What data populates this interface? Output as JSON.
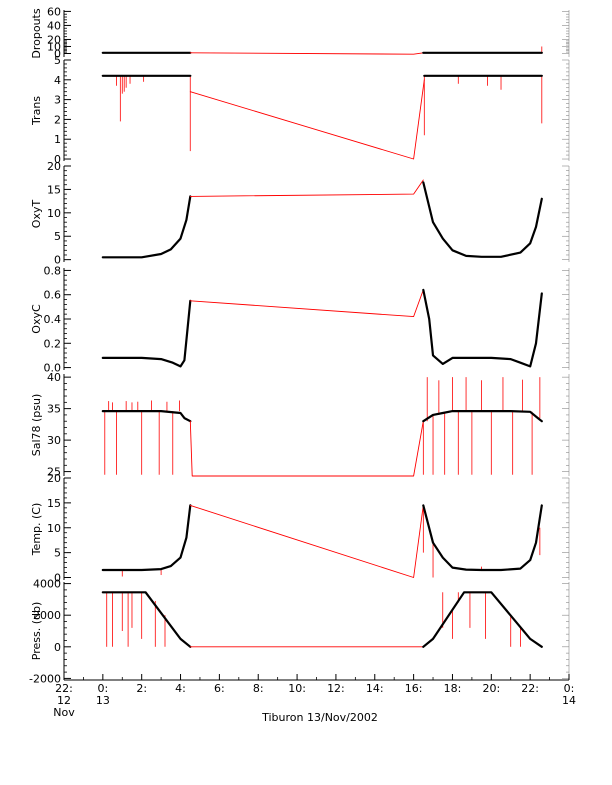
{
  "chart_data": {
    "type": "line",
    "title": "",
    "xlabel": "Tiburon 13/Nov/2002",
    "x_unit": "hours from 00:00 13 Nov 2002",
    "xlim": [
      -2,
      24
    ],
    "x_ticks": [
      {
        "value": -2,
        "lines": [
          "22:",
          "12",
          "Nov"
        ]
      },
      {
        "value": 0,
        "lines": [
          "0:",
          "13"
        ]
      },
      {
        "value": 2,
        "lines": [
          "2:"
        ]
      },
      {
        "value": 4,
        "lines": [
          "4:"
        ]
      },
      {
        "value": 6,
        "lines": [
          "6:"
        ]
      },
      {
        "value": 8,
        "lines": [
          "8:"
        ]
      },
      {
        "value": 10,
        "lines": [
          "10:"
        ]
      },
      {
        "value": 12,
        "lines": [
          "12:"
        ]
      },
      {
        "value": 14,
        "lines": [
          "14:"
        ]
      },
      {
        "value": 16,
        "lines": [
          "16:"
        ]
      },
      {
        "value": 18,
        "lines": [
          "18:"
        ]
      },
      {
        "value": 20,
        "lines": [
          "20:"
        ]
      },
      {
        "value": 22,
        "lines": [
          "22:"
        ]
      },
      {
        "value": 24,
        "lines": [
          "0:",
          "14"
        ]
      }
    ],
    "colors": {
      "data": "#000000",
      "link": "#ff0000"
    },
    "panels": [
      {
        "ylabel": "Dropouts",
        "ylim": [
          -5,
          62
        ],
        "yticks": [
          "0",
          "10",
          "20",
          "40",
          "60"
        ],
        "ytick_values": [
          0,
          10,
          20,
          40,
          60
        ],
        "series": [
          {
            "style": "data",
            "x": [
              0,
              4.5
            ],
            "y": [
              1,
              1
            ]
          },
          {
            "style": "link",
            "x": [
              4.5,
              16,
              16.5
            ],
            "y": [
              1,
              -1,
              1
            ]
          },
          {
            "style": "data",
            "x": [
              16.5,
              22.6
            ],
            "y": [
              1,
              1
            ]
          }
        ],
        "spikes": [
          {
            "x": 22.6,
            "y0": 1,
            "y1": 10
          }
        ]
      },
      {
        "ylabel": "Trans",
        "ylim": [
          -0.1,
          5
        ],
        "yticks": [
          "0",
          "1",
          "2",
          "3",
          "4",
          "5"
        ],
        "ytick_values": [
          0,
          1,
          2,
          3,
          4,
          5
        ],
        "series": [
          {
            "style": "data",
            "x": [
              0,
              4.5
            ],
            "y": [
              4.2,
              4.2
            ]
          },
          {
            "style": "link",
            "x": [
              4.5,
              16,
              16.55
            ],
            "y": [
              3.4,
              0,
              4.0
            ]
          },
          {
            "style": "data",
            "x": [
              16.55,
              22.6
            ],
            "y": [
              4.2,
              4.2
            ]
          }
        ],
        "spikes": [
          {
            "x": 0.7,
            "y0": 4.2,
            "y1": 3.7
          },
          {
            "x": 0.9,
            "y0": 4.2,
            "y1": 1.9
          },
          {
            "x": 1.0,
            "y0": 4.2,
            "y1": 3.3
          },
          {
            "x": 1.1,
            "y0": 4.2,
            "y1": 3.4
          },
          {
            "x": 1.2,
            "y0": 4.2,
            "y1": 3.6
          },
          {
            "x": 1.4,
            "y0": 4.2,
            "y1": 3.8
          },
          {
            "x": 2.1,
            "y0": 4.2,
            "y1": 3.9
          },
          {
            "x": 4.5,
            "y0": 4.2,
            "y1": 0.4
          },
          {
            "x": 16.55,
            "y0": 4.2,
            "y1": 1.2
          },
          {
            "x": 18.3,
            "y0": 4.2,
            "y1": 3.8
          },
          {
            "x": 19.8,
            "y0": 4.2,
            "y1": 3.7
          },
          {
            "x": 20.5,
            "y0": 4.2,
            "y1": 3.5
          },
          {
            "x": 22.6,
            "y0": 4.2,
            "y1": 1.8
          }
        ]
      },
      {
        "ylabel": "OxyT",
        "ylim": [
          -0.5,
          20
        ],
        "yticks": [
          "0",
          "5",
          "10",
          "15",
          "20"
        ],
        "ytick_values": [
          0,
          5,
          10,
          15,
          20
        ],
        "series": [
          {
            "style": "data",
            "x": [
              0,
              2,
              3,
              3.5,
              4,
              4.3,
              4.5
            ],
            "y": [
              0.5,
              0.5,
              1.2,
              2.2,
              4.5,
              8.5,
              13.5
            ]
          },
          {
            "style": "link",
            "x": [
              4.5,
              16,
              16.5
            ],
            "y": [
              13.5,
              14,
              17
            ]
          },
          {
            "style": "data",
            "x": [
              16.5,
              17,
              17.5,
              18,
              18.7,
              19.5,
              20.5,
              21.5,
              22,
              22.3,
              22.6
            ],
            "y": [
              16.5,
              8,
              4.5,
              2,
              0.8,
              0.6,
              0.6,
              1.5,
              3.5,
              7,
              13
            ]
          }
        ],
        "spikes": []
      },
      {
        "ylabel": "OxyC",
        "ylim": [
          -0.02,
          0.82
        ],
        "yticks": [
          "0.0",
          "0.2",
          "0.4",
          "0.6",
          "0.8"
        ],
        "ytick_values": [
          0,
          0.2,
          0.4,
          0.6,
          0.8
        ],
        "series": [
          {
            "style": "data",
            "x": [
              0,
              2,
              3,
              3.6,
              4,
              4.2,
              4.35,
              4.5
            ],
            "y": [
              0.08,
              0.08,
              0.07,
              0.04,
              0.01,
              0.06,
              0.3,
              0.55
            ]
          },
          {
            "style": "link",
            "x": [
              4.5,
              16,
              16.5
            ],
            "y": [
              0.55,
              0.42,
              0.64
            ]
          },
          {
            "style": "data",
            "x": [
              16.5,
              16.8,
              17,
              17.5,
              18,
              19,
              20,
              21,
              21.5,
              22,
              22.3,
              22.6
            ],
            "y": [
              0.64,
              0.4,
              0.1,
              0.03,
              0.08,
              0.08,
              0.08,
              0.07,
              0.04,
              0.01,
              0.2,
              0.61
            ]
          }
        ],
        "spikes": []
      },
      {
        "ylabel": "Sal78 (psu)",
        "ylim": [
          24.3,
          40.5
        ],
        "yticks": [
          "25",
          "30",
          "35",
          "40"
        ],
        "ytick_values": [
          25,
          30,
          35,
          40
        ],
        "series": [
          {
            "style": "data",
            "x": [
              0,
              3,
              4,
              4.2,
              4.5
            ],
            "y": [
              34.6,
              34.6,
              34.3,
              33.5,
              33
            ]
          },
          {
            "style": "link",
            "x": [
              4.5,
              4.6,
              16,
              16.5
            ],
            "y": [
              33,
              24.3,
              24.3,
              33
            ]
          },
          {
            "style": "data",
            "x": [
              16.5,
              17,
              17.5,
              18,
              19,
              20,
              21,
              22,
              22.4,
              22.6
            ],
            "y": [
              33,
              34,
              34.3,
              34.6,
              34.6,
              34.6,
              34.6,
              34.5,
              33.5,
              33
            ]
          }
        ],
        "spikes": [
          {
            "x": 0.1,
            "y0": 34.6,
            "y1": 24.5
          },
          {
            "x": 0.3,
            "y0": 34.6,
            "y1": 36.2
          },
          {
            "x": 0.5,
            "y0": 34.6,
            "y1": 36.0
          },
          {
            "x": 0.7,
            "y0": 34.6,
            "y1": 24.5
          },
          {
            "x": 1.2,
            "y0": 34.6,
            "y1": 36.2
          },
          {
            "x": 1.5,
            "y0": 34.6,
            "y1": 36.0
          },
          {
            "x": 1.8,
            "y0": 34.6,
            "y1": 36.1
          },
          {
            "x": 2.0,
            "y0": 34.6,
            "y1": 24.5
          },
          {
            "x": 2.5,
            "y0": 34.6,
            "y1": 36.3
          },
          {
            "x": 2.9,
            "y0": 34.6,
            "y1": 24.5
          },
          {
            "x": 3.3,
            "y0": 34.6,
            "y1": 36.1
          },
          {
            "x": 3.6,
            "y0": 34.6,
            "y1": 24.5
          },
          {
            "x": 3.95,
            "y0": 34.6,
            "y1": 36.3
          },
          {
            "x": 16.5,
            "y0": 33,
            "y1": 24.5
          },
          {
            "x": 16.7,
            "y0": 33,
            "y1": 40
          },
          {
            "x": 17.0,
            "y0": 34,
            "y1": 24.5
          },
          {
            "x": 17.3,
            "y0": 34,
            "y1": 39.5
          },
          {
            "x": 17.6,
            "y0": 34.3,
            "y1": 24.5
          },
          {
            "x": 18.0,
            "y0": 34.6,
            "y1": 40
          },
          {
            "x": 18.3,
            "y0": 34.6,
            "y1": 24.5
          },
          {
            "x": 18.7,
            "y0": 34.6,
            "y1": 40
          },
          {
            "x": 19.0,
            "y0": 34.6,
            "y1": 24.5
          },
          {
            "x": 19.5,
            "y0": 34.6,
            "y1": 39.5
          },
          {
            "x": 20.0,
            "y0": 34.6,
            "y1": 24.5
          },
          {
            "x": 20.6,
            "y0": 34.6,
            "y1": 40
          },
          {
            "x": 21.1,
            "y0": 34.6,
            "y1": 24.5
          },
          {
            "x": 21.6,
            "y0": 34.6,
            "y1": 39.6
          },
          {
            "x": 22.1,
            "y0": 34.5,
            "y1": 24.5
          },
          {
            "x": 22.5,
            "y0": 33.5,
            "y1": 40
          }
        ]
      },
      {
        "ylabel": "Temp. (C)",
        "ylim": [
          -0.5,
          20
        ],
        "yticks": [
          "0",
          "5",
          "10",
          "15",
          "20"
        ],
        "ytick_values": [
          0,
          5,
          10,
          15,
          20
        ],
        "series": [
          {
            "style": "data",
            "x": [
              0,
              2,
              3,
              3.5,
              4,
              4.3,
              4.5
            ],
            "y": [
              1.5,
              1.5,
              1.7,
              2.3,
              4,
              8,
              14.5
            ]
          },
          {
            "style": "link",
            "x": [
              4.5,
              16,
              16.5
            ],
            "y": [
              14.5,
              0,
              14.5
            ]
          },
          {
            "style": "data",
            "x": [
              16.5,
              17,
              17.5,
              18,
              18.7,
              19.5,
              20.5,
              21.5,
              22,
              22.3,
              22.6
            ],
            "y": [
              14.5,
              7,
              4,
              2,
              1.6,
              1.5,
              1.5,
              1.8,
              3.5,
              7,
              14.5
            ]
          }
        ],
        "spikes": [
          {
            "x": 1.0,
            "y0": 1.5,
            "y1": 0.2
          },
          {
            "x": 3.0,
            "y0": 1.7,
            "y1": 0.5
          },
          {
            "x": 16.5,
            "y0": 14.5,
            "y1": 5
          },
          {
            "x": 17.0,
            "y0": 7,
            "y1": 0
          },
          {
            "x": 19.5,
            "y0": 1.5,
            "y1": 2.2
          },
          {
            "x": 22.5,
            "y0": 10,
            "y1": 4.5
          }
        ]
      },
      {
        "ylabel": "Press. (db)",
        "ylim": [
          -2100,
          4100
        ],
        "yticks": [
          "-2000",
          "0",
          "2000",
          "4000"
        ],
        "ytick_values": [
          -2000,
          0,
          2000,
          4000
        ],
        "series": [
          {
            "style": "data",
            "x": [
              0,
              2.2,
              4.0,
              4.5
            ],
            "y": [
              3450,
              3450,
              500,
              0
            ]
          },
          {
            "style": "link",
            "x": [
              4.5,
              16.5
            ],
            "y": [
              0,
              0
            ]
          },
          {
            "style": "data",
            "x": [
              16.5,
              17.0,
              18.6,
              20.0,
              22.0,
              22.6
            ],
            "y": [
              0,
              500,
              3450,
              3450,
              500,
              0
            ]
          }
        ],
        "spikes": [
          {
            "x": 0.2,
            "y0": 3450,
            "y1": 0
          },
          {
            "x": 0.5,
            "y0": 3450,
            "y1": 0
          },
          {
            "x": 1.0,
            "y0": 3450,
            "y1": 1000
          },
          {
            "x": 1.3,
            "y0": 3450,
            "y1": 0
          },
          {
            "x": 1.5,
            "y0": 3450,
            "y1": 1200
          },
          {
            "x": 2.0,
            "y0": 3450,
            "y1": 500
          },
          {
            "x": 2.7,
            "y0": 2900,
            "y1": 0
          },
          {
            "x": 3.2,
            "y0": 2000,
            "y1": 0
          },
          {
            "x": 17.5,
            "y0": 1200,
            "y1": 3450
          },
          {
            "x": 18.0,
            "y0": 2300,
            "y1": 500
          },
          {
            "x": 18.3,
            "y0": 2800,
            "y1": 3450
          },
          {
            "x": 18.9,
            "y0": 3450,
            "y1": 1200
          },
          {
            "x": 19.7,
            "y0": 3450,
            "y1": 500
          },
          {
            "x": 21.0,
            "y0": 2000,
            "y1": 0
          },
          {
            "x": 21.5,
            "y0": 1300,
            "y1": 0
          }
        ]
      }
    ]
  }
}
